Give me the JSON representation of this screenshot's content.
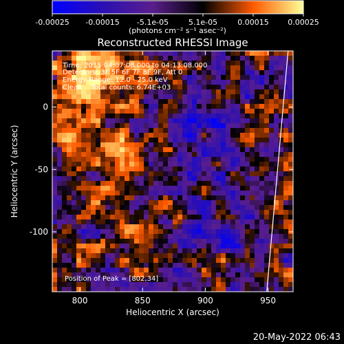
{
  "colorbar": {
    "tick_labels": [
      "-0.00025",
      "-0.00015",
      "-5.1e-05",
      "5.1e-05",
      "0.00015",
      "0.00025"
    ],
    "range": [
      -0.00025,
      0.00025
    ],
    "units_label": "(photons cm⁻² s⁻¹ asec⁻²)",
    "colors": [
      "#0000ff",
      "#2a0fb4",
      "#5a1e8c",
      "#000000",
      "#ff5a00",
      "#ffff99"
    ]
  },
  "chart_data": {
    "type": "heatmap",
    "title": "Reconstructed RHESSI Image",
    "xlabel": "Heliocentric X (arcsec)",
    "ylabel": "Heliocentric Y (arcsec)",
    "xlim": [
      778,
      970
    ],
    "ylim": [
      -148,
      45
    ],
    "x_ticks": [
      800,
      850,
      900,
      950
    ],
    "y_ticks": [
      0,
      -50,
      -100
    ],
    "x_tick_labels": [
      "800",
      "850",
      "900",
      "950"
    ],
    "y_tick_labels": [
      "0",
      "-50",
      "-100"
    ],
    "limb_line": {
      "x": [
        966,
        949
      ],
      "y": [
        45,
        -148
      ]
    },
    "peak": {
      "x": 802,
      "y": 34
    },
    "annotations": [
      "Time: 2015 04:07:08.000 to 04:13:08.000",
      "Detectors: 3F 5F 6F 7F 8F 9F, Att 0",
      "Energy Range: 12.0 - 25.0 keV",
      "Clean    Total counts: 6.74E+03",
      "Position of Peak = [802,34]"
    ]
  },
  "footer_timestamp": "20-May-2022 06:43"
}
